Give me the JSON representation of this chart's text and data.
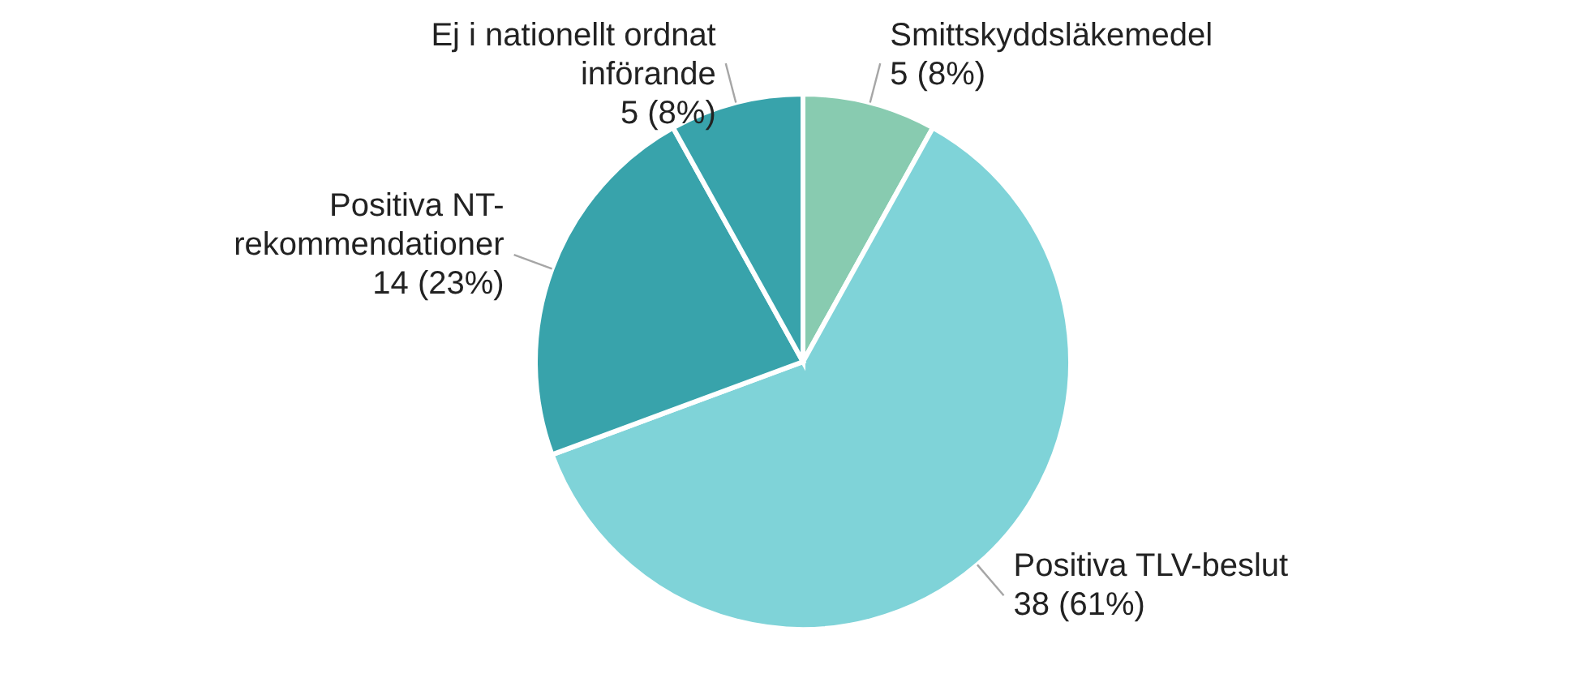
{
  "chart_data": {
    "type": "pie",
    "categories": [
      "Smittskyddsläkemedel",
      "Positiva TLV-beslut",
      "Positiva NT-rekommendationer",
      "Ej i nationellt ordnat införande"
    ],
    "values": [
      5,
      38,
      14,
      5
    ],
    "value_labels": [
      "5 (8%)",
      "38 (61%)",
      "14 (23%)",
      "5 (8%)"
    ],
    "colors": [
      "#88cbb0",
      "#7fd3d8",
      "#38a3ab",
      "#38a3ab"
    ]
  }
}
